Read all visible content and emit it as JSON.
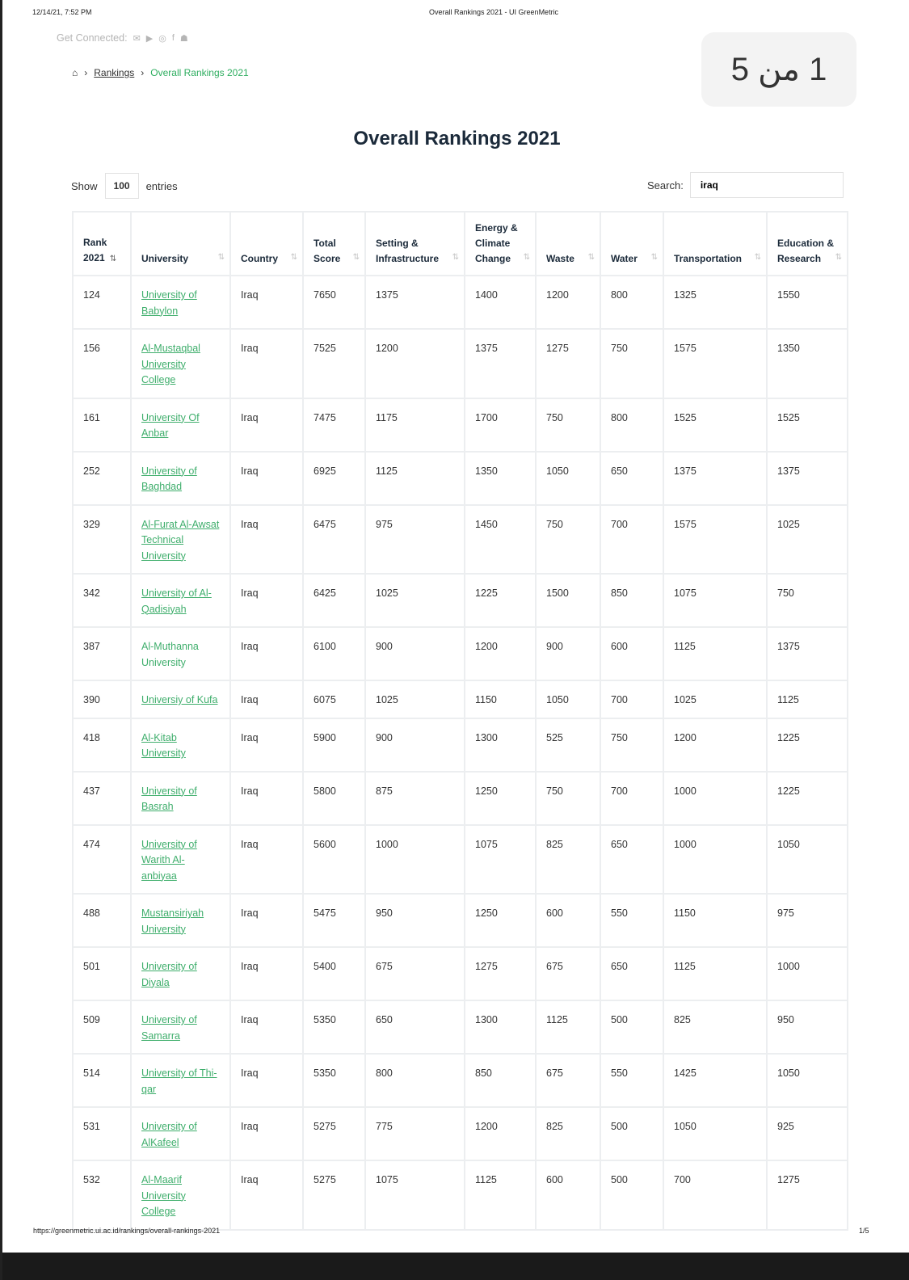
{
  "print_header": {
    "date": "12/14/21, 7:52 PM",
    "title": "Overall Rankings 2021 - UI GreenMetric"
  },
  "connected": {
    "label": "Get Connected:",
    "icons": [
      "email-icon",
      "youtube-icon",
      "instagram-icon",
      "facebook-icon",
      "android-icon"
    ]
  },
  "breadcrumb": {
    "home_icon": "home-icon",
    "items": [
      "Rankings",
      "Overall Rankings 2021"
    ]
  },
  "page_badge": "1 من 5",
  "title": "Overall Rankings 2021",
  "show": {
    "label": "Show",
    "value": "100",
    "suffix": "entries"
  },
  "search": {
    "label": "Search:",
    "value": "iraq"
  },
  "table": {
    "headers": [
      "Rank 2021",
      "University",
      "Country",
      "Total Score",
      "Setting & Infrastructure",
      "Energy & Climate Change",
      "Waste",
      "Water",
      "Transportation",
      "Education & Research"
    ],
    "rows": [
      [
        "124",
        "University of Babylon",
        "Iraq",
        "7650",
        "1375",
        "1400",
        "1200",
        "800",
        "1325",
        "1550"
      ],
      [
        "156",
        "Al-Mustaqbal University College",
        "Iraq",
        "7525",
        "1200",
        "1375",
        "1275",
        "750",
        "1575",
        "1350"
      ],
      [
        "161",
        "University Of Anbar",
        "Iraq",
        "7475",
        "1175",
        "1700",
        "750",
        "800",
        "1525",
        "1525"
      ],
      [
        "252",
        "University of Baghdad",
        "Iraq",
        "6925",
        "1125",
        "1350",
        "1050",
        "650",
        "1375",
        "1375"
      ],
      [
        "329",
        "Al-Furat Al-Awsat Technical University",
        "Iraq",
        "6475",
        "975",
        "1450",
        "750",
        "700",
        "1575",
        "1025"
      ],
      [
        "342",
        "University of Al-Qadisiyah",
        "Iraq",
        "6425",
        "1025",
        "1225",
        "1500",
        "850",
        "1075",
        "750"
      ],
      [
        "387",
        "Al-Muthanna University",
        "Iraq",
        "6100",
        "900",
        "1200",
        "900",
        "600",
        "1125",
        "1375"
      ],
      [
        "390",
        "Universiy of Kufa",
        "Iraq",
        "6075",
        "1025",
        "1150",
        "1050",
        "700",
        "1025",
        "1125"
      ],
      [
        "418",
        "Al-Kitab University",
        "Iraq",
        "5900",
        "900",
        "1300",
        "525",
        "750",
        "1200",
        "1225"
      ],
      [
        "437",
        "University of Basrah",
        "Iraq",
        "5800",
        "875",
        "1250",
        "750",
        "700",
        "1000",
        "1225"
      ],
      [
        "474",
        "University of Warith Al-anbiyaa",
        "Iraq",
        "5600",
        "1000",
        "1075",
        "825",
        "650",
        "1000",
        "1050"
      ],
      [
        "488",
        "Mustansiriyah University",
        "Iraq",
        "5475",
        "950",
        "1250",
        "600",
        "550",
        "1150",
        "975"
      ],
      [
        "501",
        "University of Diyala",
        "Iraq",
        "5400",
        "675",
        "1275",
        "675",
        "650",
        "1125",
        "1000"
      ],
      [
        "509",
        "University of Samarra",
        "Iraq",
        "5350",
        "650",
        "1300",
        "1125",
        "500",
        "825",
        "950"
      ],
      [
        "514",
        "University of Thi-qar",
        "Iraq",
        "5350",
        "800",
        "850",
        "675",
        "550",
        "1425",
        "1050"
      ],
      [
        "531",
        "University of AlKafeel",
        "Iraq",
        "5275",
        "775",
        "1200",
        "825",
        "500",
        "1050",
        "925"
      ],
      [
        "532",
        "Al-Maarif University College",
        "Iraq",
        "5275",
        "1075",
        "1125",
        "600",
        "500",
        "700",
        "1275"
      ]
    ]
  },
  "footer": {
    "url": "https://greenmetric.ui.ac.id/rankings/overall-rankings-2021",
    "page": "1/5"
  },
  "colors": {
    "link": "#3fae6c",
    "title": "#1b2a3a"
  }
}
